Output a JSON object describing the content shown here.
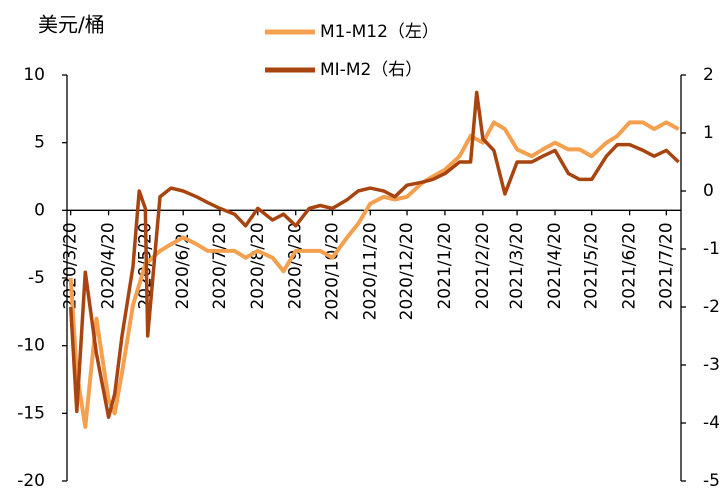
{
  "chart_data": {
    "type": "line",
    "y_label": "美元/桶",
    "xlim": [
      "2020/3/17",
      "2021/8/1"
    ],
    "xticks": [
      "2020/3/20",
      "2020/4/20",
      "2020/5/20",
      "2020/6/20",
      "2020/7/20",
      "2020/8/20",
      "2020/9/20",
      "2020/10/20",
      "2020/11/20",
      "2020/12/20",
      "2021/1/20",
      "2021/2/20",
      "2021/3/20",
      "2021/4/20",
      "2021/5/20",
      "2021/6/20",
      "2021/7/20"
    ],
    "ylim": [
      -20,
      10
    ],
    "yticks": [
      -20,
      -15,
      -10,
      -5,
      0,
      5,
      10
    ],
    "y2lim": [
      -5,
      2
    ],
    "y2ticks": [
      -5,
      -4,
      -3,
      -2,
      -1,
      0,
      1,
      2
    ],
    "series": [
      {
        "name": "M1-M12（左）",
        "color": "#F5A04F",
        "x": [
          "2020/3/20",
          "2020/3/25",
          "2020/4/1",
          "2020/4/10",
          "2020/4/20",
          "2020/4/25",
          "2020/5/1",
          "2020/5/10",
          "2020/5/20",
          "2020/6/1",
          "2020/6/10",
          "2020/6/20",
          "2020/7/1",
          "2020/7/10",
          "2020/7/20",
          "2020/8/1",
          "2020/8/10",
          "2020/8/20",
          "2020/9/1",
          "2020/9/10",
          "2020/9/20",
          "2020/10/1",
          "2020/10/10",
          "2020/10/20",
          "2020/11/1",
          "2020/11/10",
          "2020/11/20",
          "2020/12/1",
          "2020/12/10",
          "2020/12/20",
          "2021/1/1",
          "2021/1/10",
          "2021/1/20",
          "2021/2/1",
          "2021/2/10",
          "2021/2/20",
          "2021/3/1",
          "2021/3/10",
          "2021/3/20",
          "2021/4/1",
          "2021/4/10",
          "2021/4/20",
          "2021/5/1",
          "2021/5/10",
          "2021/5/20",
          "2021/6/1",
          "2021/6/10",
          "2021/6/20",
          "2021/7/1",
          "2021/7/10",
          "2021/7/20",
          "2021/7/30"
        ],
        "values": [
          -5,
          -12,
          -16,
          -8,
          -14,
          -15,
          -12,
          -7,
          -4,
          -3,
          -2.5,
          -2,
          -2.5,
          -3,
          -3,
          -3,
          -3.5,
          -3,
          -3.5,
          -4.5,
          -3,
          -3,
          -3,
          -3.5,
          -2,
          -1,
          0.5,
          1,
          0.8,
          1,
          2,
          2.5,
          3,
          4,
          5.5,
          5,
          6.5,
          6,
          4.5,
          4,
          4.5,
          5,
          4.5,
          4.5,
          4,
          5,
          5.5,
          6.5,
          6.5,
          6,
          6.5,
          6
        ]
      },
      {
        "name": "MI-M2（右）",
        "color": "#A8440F",
        "axis": "y2",
        "x": [
          "2020/3/20",
          "2020/3/25",
          "2020/4/1",
          "2020/4/10",
          "2020/4/20",
          "2020/4/25",
          "2020/5/1",
          "2020/5/10",
          "2020/5/15",
          "2020/5/20",
          "2020/5/22",
          "2020/6/1",
          "2020/6/10",
          "2020/6/20",
          "2020/7/1",
          "2020/7/10",
          "2020/7/20",
          "2020/8/1",
          "2020/8/10",
          "2020/8/20",
          "2020/9/1",
          "2020/9/10",
          "2020/9/20",
          "2020/10/1",
          "2020/10/10",
          "2020/10/20",
          "2020/11/1",
          "2020/11/10",
          "2020/11/20",
          "2020/12/1",
          "2020/12/10",
          "2020/12/20",
          "2021/1/1",
          "2021/1/10",
          "2021/1/20",
          "2021/2/1",
          "2021/2/10",
          "2021/2/15",
          "2021/2/20",
          "2021/3/1",
          "2021/3/10",
          "2021/3/20",
          "2021/4/1",
          "2021/4/10",
          "2021/4/20",
          "2021/5/1",
          "2021/5/10",
          "2021/5/20",
          "2021/6/1",
          "2021/6/10",
          "2021/6/20",
          "2021/7/1",
          "2021/7/10",
          "2021/7/20",
          "2021/7/30"
        ],
        "values": [
          -2,
          -3.8,
          -1.4,
          -2.8,
          -3.9,
          -3.5,
          -2.5,
          -1.3,
          0,
          -0.3,
          -2.5,
          -0.1,
          0.05,
          0,
          -0.1,
          -0.2,
          -0.3,
          -0.4,
          -0.6,
          -0.3,
          -0.5,
          -0.4,
          -0.6,
          -0.3,
          -0.25,
          -0.3,
          -0.15,
          0,
          0.05,
          0,
          -0.1,
          0.1,
          0.15,
          0.2,
          0.3,
          0.5,
          0.5,
          1.7,
          0.9,
          0.7,
          -0.05,
          0.5,
          0.5,
          0.6,
          0.7,
          0.3,
          0.2,
          0.2,
          0.6,
          0.8,
          0.8,
          0.7,
          0.6,
          0.7,
          0.5
        ]
      }
    ]
  }
}
